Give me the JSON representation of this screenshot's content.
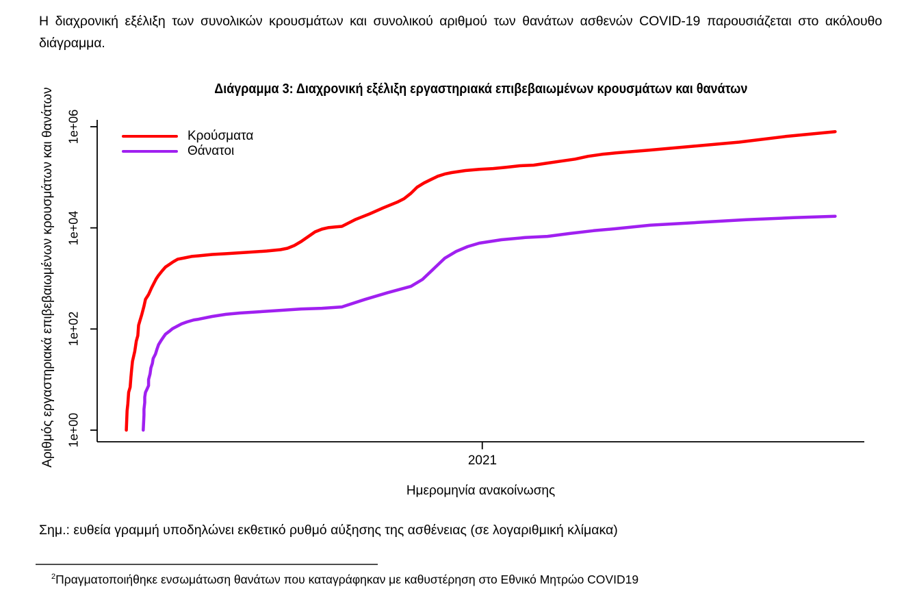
{
  "intro": {
    "line1": "Η διαχρονική εξέλιξη των συνολικών κρουσμάτων και συνολικού αριθμού των θανάτων ασθενών COVID-19 παρουσιάζεται στο ακόλουθο",
    "line2": "διάγραμμα."
  },
  "chart": {
    "title": "Διάγραμμα 3: Διαχρονική εξέλιξη εργαστηριακά επιβεβαιωμένων κρουσμάτων και θανάτων",
    "xlabel": "Ημερομηνία ανακοίνωσης",
    "ylabel": "Αριθμός εργαστηριακά επιβεβαιωμένων κρουσμάτων και θανάτων",
    "yticks": [
      {
        "label": "1e+00",
        "exp": 0
      },
      {
        "label": "1e+02",
        "exp": 2
      },
      {
        "label": "1e+04",
        "exp": 4
      },
      {
        "label": "1e+06",
        "exp": 6
      }
    ],
    "xticks": [
      {
        "label": "2021",
        "frac": 0.502
      }
    ],
    "axis_color": "#000000"
  },
  "chart_data": {
    "type": "line",
    "title": "Διάγραμμα 3: Διαχρονική εξέλιξη εργαστηριακά επιβεβαιωμένων κρουσμάτων και θανάτων",
    "xlabel": "Ημερομηνία ανακοίνωσης",
    "ylabel": "Αριθμός εργαστηριακά επιβεβαιωμένων κρουσμάτων και θανάτων",
    "y_scale": "log10",
    "ylim": [
      1,
      1000000
    ],
    "x_axis_note": "x values are fractions of the time axis; tick 2021 at 0.502",
    "legend_position": "top-left",
    "grid": false,
    "series": [
      {
        "name": "Κρούσματα",
        "color": "#FF0000",
        "points": [
          [
            0.038,
            1
          ],
          [
            0.039,
            2.4
          ],
          [
            0.04,
            3.3
          ],
          [
            0.041,
            5.6
          ],
          [
            0.043,
            7.1
          ],
          [
            0.044,
            11
          ],
          [
            0.045,
            16
          ],
          [
            0.046,
            23
          ],
          [
            0.049,
            36
          ],
          [
            0.051,
            58
          ],
          [
            0.053,
            74
          ],
          [
            0.054,
            118
          ],
          [
            0.056,
            151
          ],
          [
            0.058,
            189
          ],
          [
            0.061,
            283
          ],
          [
            0.063,
            386
          ],
          [
            0.067,
            481
          ],
          [
            0.071,
            657
          ],
          [
            0.077,
            985
          ],
          [
            0.08,
            1150
          ],
          [
            0.085,
            1430
          ],
          [
            0.089,
            1680
          ],
          [
            0.094,
            1890
          ],
          [
            0.099,
            2130
          ],
          [
            0.105,
            2400
          ],
          [
            0.114,
            2550
          ],
          [
            0.123,
            2720
          ],
          [
            0.132,
            2800
          ],
          [
            0.15,
            2980
          ],
          [
            0.168,
            3080
          ],
          [
            0.194,
            3270
          ],
          [
            0.221,
            3480
          ],
          [
            0.239,
            3710
          ],
          [
            0.248,
            3950
          ],
          [
            0.257,
            4480
          ],
          [
            0.266,
            5390
          ],
          [
            0.275,
            6700
          ],
          [
            0.284,
            8330
          ],
          [
            0.293,
            9440
          ],
          [
            0.301,
            10100
          ],
          [
            0.31,
            10400
          ],
          [
            0.319,
            10700
          ],
          [
            0.337,
            14700
          ],
          [
            0.355,
            18900
          ],
          [
            0.373,
            24900
          ],
          [
            0.391,
            32200
          ],
          [
            0.4,
            37700
          ],
          [
            0.409,
            48300
          ],
          [
            0.417,
            63800
          ],
          [
            0.426,
            77100
          ],
          [
            0.435,
            90200
          ],
          [
            0.444,
            105000
          ],
          [
            0.453,
            116000
          ],
          [
            0.462,
            124000
          ],
          [
            0.48,
            136000
          ],
          [
            0.498,
            144000
          ],
          [
            0.516,
            149000
          ],
          [
            0.533,
            158000
          ],
          [
            0.551,
            169000
          ],
          [
            0.569,
            174000
          ],
          [
            0.587,
            191000
          ],
          [
            0.605,
            209000
          ],
          [
            0.623,
            229000
          ],
          [
            0.64,
            260000
          ],
          [
            0.658,
            285000
          ],
          [
            0.676,
            303000
          ],
          [
            0.718,
            342000
          ],
          [
            0.777,
            412000
          ],
          [
            0.837,
            496000
          ],
          [
            0.897,
            641000
          ],
          [
            0.962,
            800000
          ]
        ]
      },
      {
        "name": "Θάνατοι",
        "color": "#A020F0",
        "points": [
          [
            0.06,
            1
          ],
          [
            0.061,
            2
          ],
          [
            0.061,
            2.6
          ],
          [
            0.062,
            3.5
          ],
          [
            0.062,
            4.5
          ],
          [
            0.063,
            5.6
          ],
          [
            0.065,
            6.5
          ],
          [
            0.067,
            7.6
          ],
          [
            0.067,
            10
          ],
          [
            0.069,
            13
          ],
          [
            0.07,
            17
          ],
          [
            0.072,
            21
          ],
          [
            0.073,
            26
          ],
          [
            0.076,
            32
          ],
          [
            0.078,
            40
          ],
          [
            0.08,
            49
          ],
          [
            0.083,
            58
          ],
          [
            0.086,
            68
          ],
          [
            0.089,
            79
          ],
          [
            0.094,
            90
          ],
          [
            0.098,
            101
          ],
          [
            0.103,
            111
          ],
          [
            0.11,
            126
          ],
          [
            0.117,
            138
          ],
          [
            0.126,
            151
          ],
          [
            0.132,
            156
          ],
          [
            0.15,
            177
          ],
          [
            0.168,
            195
          ],
          [
            0.186,
            207
          ],
          [
            0.212,
            220
          ],
          [
            0.239,
            234
          ],
          [
            0.266,
            249
          ],
          [
            0.293,
            257
          ],
          [
            0.319,
            273
          ],
          [
            0.349,
            384
          ],
          [
            0.379,
            524
          ],
          [
            0.409,
            697
          ],
          [
            0.424,
            955
          ],
          [
            0.438,
            1520
          ],
          [
            0.453,
            2500
          ],
          [
            0.468,
            3420
          ],
          [
            0.483,
            4260
          ],
          [
            0.498,
            4990
          ],
          [
            0.527,
            5820
          ],
          [
            0.558,
            6430
          ],
          [
            0.587,
            6790
          ],
          [
            0.616,
            7730
          ],
          [
            0.647,
            8790
          ],
          [
            0.676,
            9630
          ],
          [
            0.721,
            11300
          ],
          [
            0.783,
            12800
          ],
          [
            0.846,
            14500
          ],
          [
            0.908,
            15900
          ],
          [
            0.962,
            17000
          ]
        ]
      }
    ]
  },
  "note": "Σημ.: ευθεία γραμμή υποδηλώνει εκθετικό ρυθμό αύξησης της ασθένειας (σε λογαριθμική κλίμακα)",
  "footnote": {
    "marker": "2",
    "text": "Πραγματοποιήθηκε ενσωμάτωση θανάτων που καταγράφηκαν με καθυστέρηση στο Εθνικό Μητρώο COVID19"
  }
}
